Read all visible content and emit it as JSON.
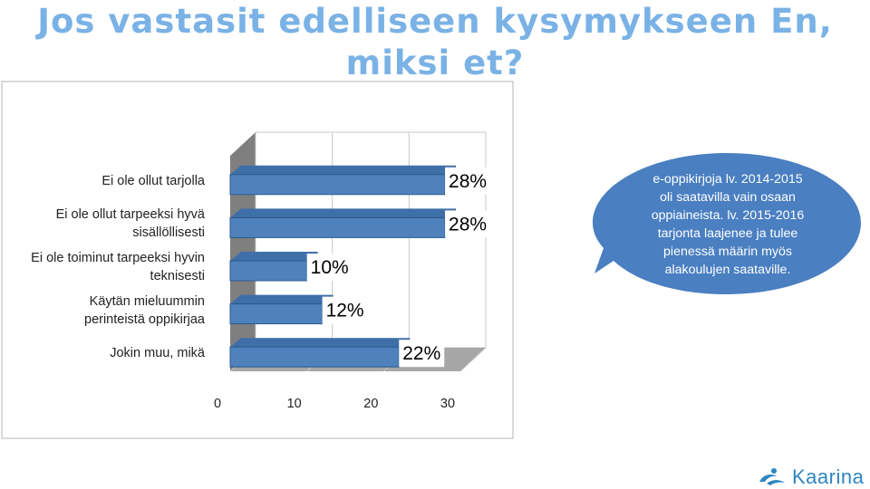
{
  "slide": {
    "title_line1": "Jos vastasit edelliseen kysymykseen En,",
    "title_line2": "miksi et?"
  },
  "chart_data": {
    "type": "bar",
    "orientation": "horizontal",
    "categories": [
      "Ei ole ollut tarjolla",
      "Ei ole ollut tarpeeksi hyvä sisällöllisesti",
      "Ei ole toiminut tarpeeksi hyvin teknisesti",
      "Käytän mieluummin perinteistä oppikirjaa",
      "Jokin muu, mikä"
    ],
    "category_lines": [
      [
        "Ei ole ollut tarjolla"
      ],
      [
        "Ei ole ollut tarpeeksi hyvä",
        "sisällöllisesti"
      ],
      [
        "Ei ole toiminut tarpeeksi hyvin",
        "teknisesti"
      ],
      [
        "Käytän mieluummin",
        "perinteistä oppikirjaa"
      ],
      [
        "Jokin muu, mikä"
      ]
    ],
    "values": [
      28,
      28,
      10,
      12,
      22
    ],
    "data_labels": [
      "28%",
      "28%",
      "10%",
      "12%",
      "22%"
    ],
    "x_ticks": [
      "0",
      "10",
      "20",
      "30"
    ],
    "xlim": [
      0,
      30
    ],
    "grid": true,
    "style": "3d",
    "bar_color": "#4f81bd"
  },
  "callout": {
    "text_lines": [
      "e-oppikirjoja lv. 2014-2015",
      "oli saatavilla vain osaan",
      "oppiaineista. lv. 2015-2016",
      "tarjonta laajenee ja tulee",
      "pienessä määrin myös",
      "alakoulujen saataville."
    ],
    "color": "#4a7fc1"
  },
  "logo": {
    "text": "Kaarina"
  }
}
